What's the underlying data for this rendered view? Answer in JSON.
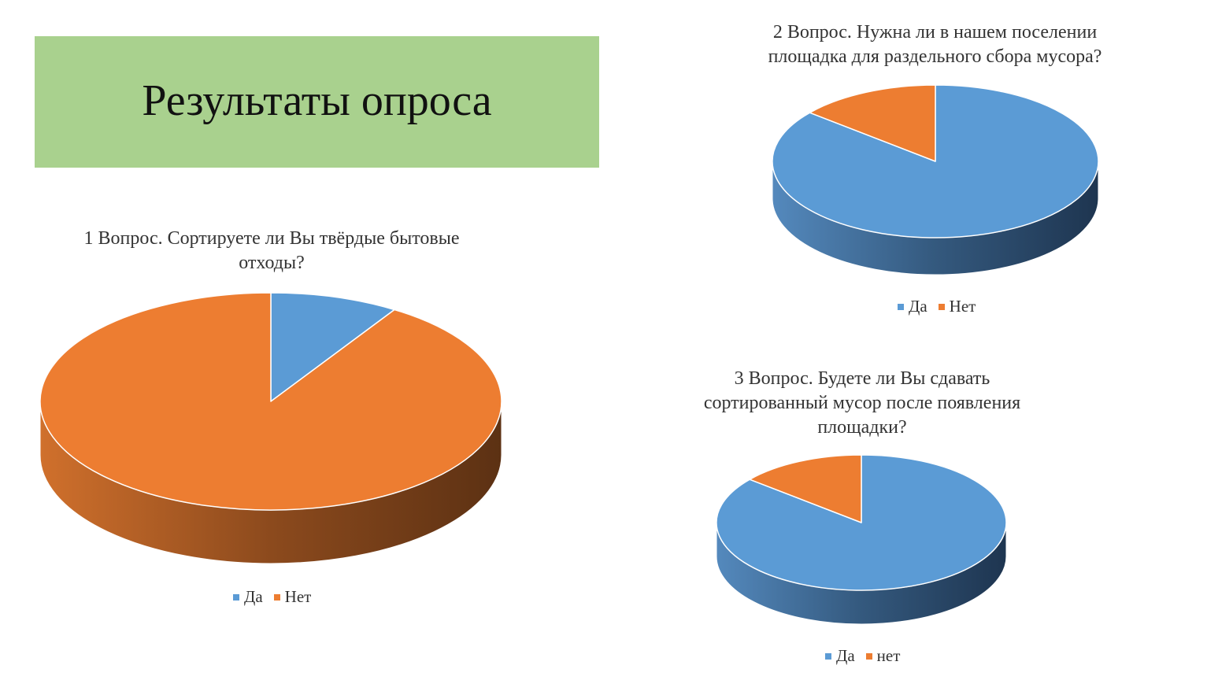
{
  "page": {
    "title": "Результаты опроса"
  },
  "colors": {
    "title_box": "#a9d18e",
    "da": "#5b9bd5",
    "net": "#ed7d31"
  },
  "chart_data": [
    {
      "type": "pie",
      "title": "1 Вопрос. Сортируете ли Вы твёрдые бытовые\nотходы?",
      "categories": [
        "Да",
        "Нет"
      ],
      "values": [
        9,
        91
      ],
      "legend": "bottom"
    },
    {
      "type": "pie",
      "title": "2 Вопрос. Нужна ли в нашем поселении\nплощадка для раздельного сбора мусора?",
      "categories": [
        "Да",
        "Нет"
      ],
      "values": [
        86,
        14
      ],
      "legend": "bottom"
    },
    {
      "type": "pie",
      "title": "3 Вопрос. Будете ли Вы сдавать\nсортированный мусор после появления\nплощадки?",
      "categories": [
        "Да",
        "нет"
      ],
      "values": [
        86,
        14
      ],
      "legend": "bottom"
    }
  ]
}
